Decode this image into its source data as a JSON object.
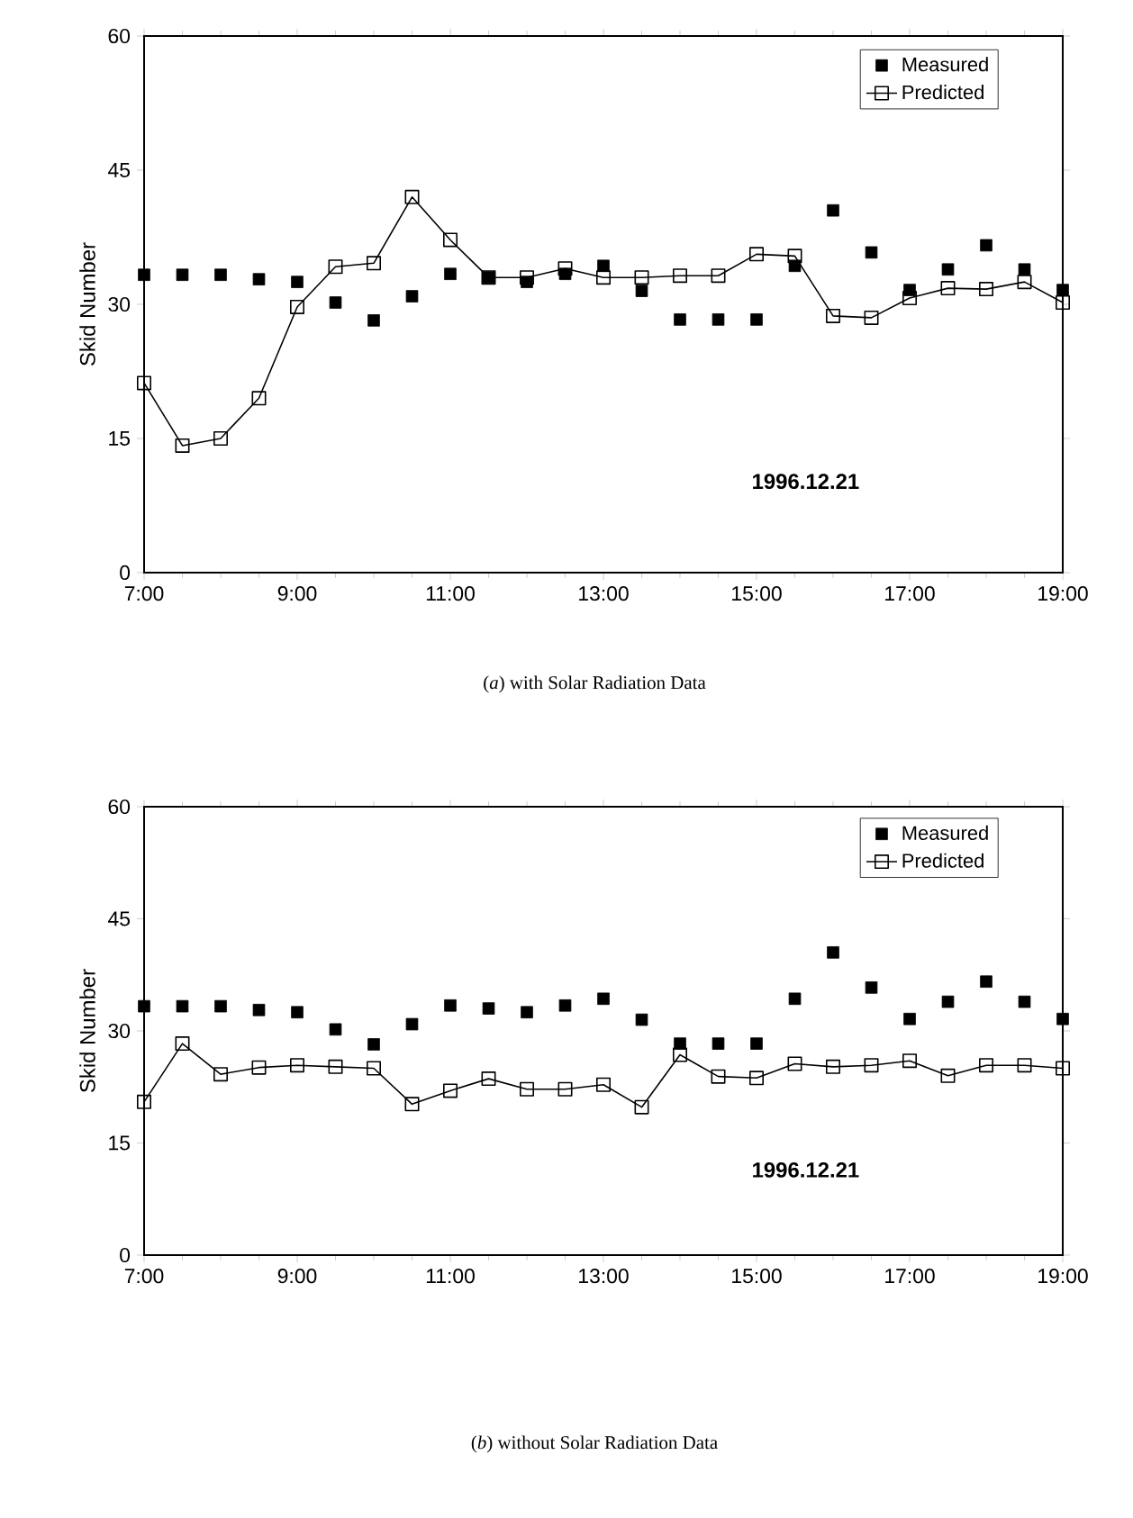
{
  "chart_data": [
    {
      "type": "line",
      "title": "(*a*) with Solar Radiation Data",
      "ylabel": "Skid Number",
      "x": [
        7,
        7.5,
        8,
        8.5,
        9,
        9.5,
        10,
        10.5,
        11,
        11.5,
        12,
        12.5,
        13,
        13.5,
        14,
        14.5,
        15,
        15.5,
        16,
        16.5,
        17,
        17.5,
        18,
        18.5,
        19
      ],
      "series": [
        {
          "name": "Measured",
          "type": "scatter",
          "marker": "square",
          "color": "#000000",
          "values": [
            33.3,
            33.3,
            33.3,
            32.8,
            32.5,
            30.2,
            28.2,
            30.9,
            33.4,
            33,
            32.5,
            33.4,
            34.3,
            31.5,
            28.3,
            28.3,
            28.3,
            34.3,
            40.5,
            35.8,
            31.6,
            33.9,
            36.6,
            33.9,
            31.6
          ]
        },
        {
          "name": "Predicted",
          "type": "line",
          "marker": "square",
          "color": "#000000",
          "values": [
            21.2,
            14.2,
            15,
            19.5,
            29.7,
            34.2,
            34.6,
            42,
            37.2,
            33,
            33,
            34,
            33,
            33,
            33.2,
            33.2,
            35.6,
            35.4,
            28.7,
            28.5,
            30.7,
            31.8,
            31.7,
            32.5,
            30.2
          ]
        }
      ],
      "xlim": [
        7,
        19
      ],
      "xticks": [
        {
          "value": 7,
          "label": "7:00"
        },
        {
          "value": 9,
          "label": "9:00"
        },
        {
          "value": 11,
          "label": "11:00"
        },
        {
          "value": 13,
          "label": "13:00"
        },
        {
          "value": 15,
          "label": "15:00"
        },
        {
          "value": 17,
          "label": "17:00"
        },
        {
          "value": 19,
          "label": "19:00"
        }
      ],
      "ylim": [
        0,
        60
      ],
      "yticks": [
        0,
        15,
        30,
        45,
        60
      ],
      "annotations": [
        "1996.12.21"
      ],
      "legend": "top right",
      "grid": false
    },
    {
      "type": "line",
      "title": "(*b*) without Solar Radiation Data",
      "ylabel": "Skid Number",
      "x": [
        7,
        7.5,
        8,
        8.5,
        9,
        9.5,
        10,
        10.5,
        11,
        11.5,
        12,
        12.5,
        13,
        13.5,
        14,
        14.5,
        15,
        15.5,
        16,
        16.5,
        17,
        17.5,
        18,
        18.5,
        19
      ],
      "series": [
        {
          "name": "Measured",
          "type": "scatter",
          "marker": "square",
          "color": "#000000",
          "values": [
            33.3,
            33.3,
            33.3,
            32.8,
            32.5,
            30.2,
            28.2,
            30.9,
            33.4,
            33,
            32.5,
            33.4,
            34.3,
            31.5,
            28.3,
            28.3,
            28.3,
            34.3,
            40.5,
            35.8,
            31.6,
            33.9,
            36.6,
            33.9,
            31.6
          ]
        },
        {
          "name": "Predicted",
          "type": "line",
          "marker": "square",
          "color": "#000000",
          "values": [
            20.5,
            28.3,
            24.2,
            25.1,
            25.4,
            25.2,
            25.0,
            20.2,
            22.0,
            23.6,
            22.2,
            22.2,
            22.8,
            19.8,
            26.8,
            23.9,
            23.7,
            25.6,
            25.2,
            25.4,
            26.0,
            24.0,
            25.4,
            25.4,
            25.0
          ]
        }
      ],
      "xlim": [
        7,
        19
      ],
      "xticks": [
        {
          "value": 7,
          "label": "7:00"
        },
        {
          "value": 9,
          "label": "9:00"
        },
        {
          "value": 11,
          "label": "11:00"
        },
        {
          "value": 13,
          "label": "13:00"
        },
        {
          "value": 15,
          "label": "15:00"
        },
        {
          "value": 17,
          "label": "17:00"
        },
        {
          "value": 19,
          "label": "19:00"
        }
      ],
      "ylim": [
        0,
        60
      ],
      "yticks": [
        0,
        15,
        30,
        45,
        60
      ],
      "annotations": [
        "1996.12.21"
      ],
      "legend": "top right",
      "grid": false
    }
  ]
}
